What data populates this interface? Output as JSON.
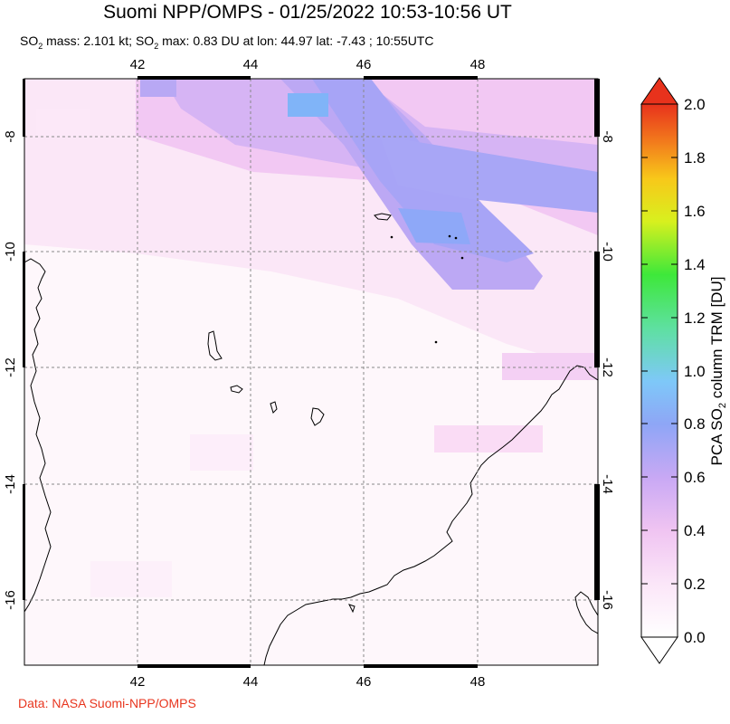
{
  "header": {
    "title": "Suomi NPP/OMPS - 01/25/2022 10:53-10:56 UT",
    "subtitle_so2_label": "SO",
    "subtitle_mass_text": " mass: 2.101 kt; SO",
    "subtitle_rest_text": " max: 0.83 DU at lon: 44.97 lat: -7.43 ; 10:55UTC"
  },
  "map": {
    "lon_ticks": [
      "42",
      "44",
      "46",
      "48"
    ],
    "lat_ticks": [
      "-8",
      "-10",
      "-12",
      "-14",
      "-16"
    ],
    "lon_range": [
      40,
      50
    ],
    "lat_range": [
      -17.2,
      -7
    ]
  },
  "colorbar": {
    "label_prefix": "PCA SO",
    "label_suffix": " column TRM [DU]",
    "ticks": [
      "0.0",
      "0.2",
      "0.4",
      "0.6",
      "0.8",
      "1.0",
      "1.2",
      "1.4",
      "1.6",
      "1.8",
      "2.0"
    ],
    "range": [
      0,
      2
    ]
  },
  "footer": {
    "credit": "Data: NASA Suomi-NPP/OMPS"
  }
}
